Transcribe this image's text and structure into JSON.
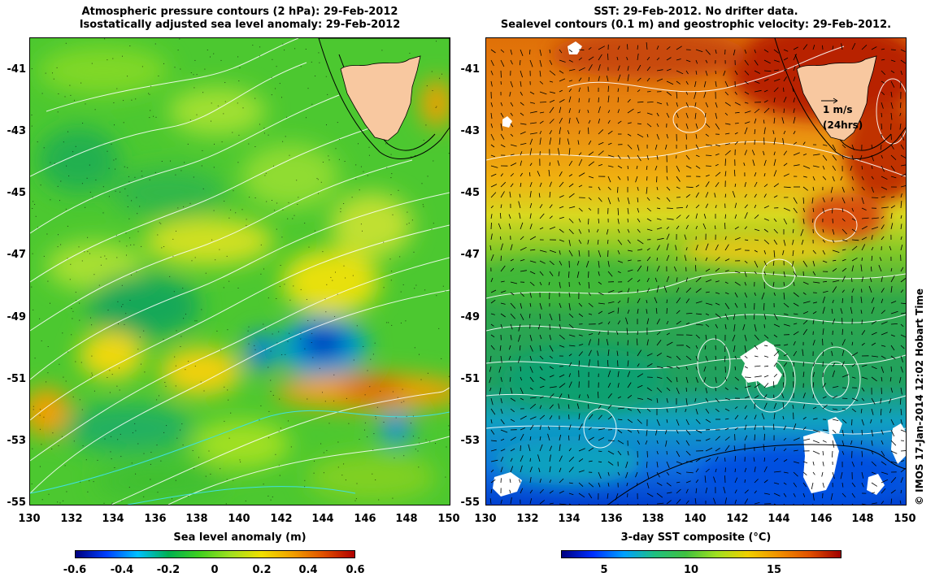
{
  "left_panel": {
    "title_line1": "Atmospheric pressure contours (2 hPa): 29-Feb-2012",
    "title_line2": "Isostatically adjusted sea level anomaly: 29-Feb-2012",
    "colorbar_label": "Sea level anomaly (m)",
    "colorbar_ticks": [
      "-0.6",
      "-0.4",
      "-0.2",
      "0",
      "0.2",
      "0.4",
      "0.6"
    ]
  },
  "right_panel": {
    "title_line1": "SST: 29-Feb-2012. No drifter data.",
    "title_line2": "Sealevel contours (0.1 m) and geostrophic velocity: 29-Feb-2012.",
    "colorbar_label": "3-day SST composite (°C)",
    "colorbar_ticks": [
      "5",
      "10",
      "15"
    ],
    "scale_arrow_label": "1 m/s",
    "scale_arrow_sublabel": "(24hrs)"
  },
  "axes": {
    "lat_ticks": [
      "-41",
      "-43",
      "-45",
      "-47",
      "-49",
      "-51",
      "-53",
      "-55"
    ],
    "lon_ticks": [
      "130",
      "132",
      "134",
      "136",
      "138",
      "140",
      "142",
      "144",
      "146",
      "148",
      "150"
    ]
  },
  "credit": "© IMOS 17-Jan-2014 12:02 Hobart Time",
  "colors": {
    "land": "#f8c8a0",
    "sla_scale": [
      "#00007f",
      "#0040ff",
      "#00c0ff",
      "#00b050",
      "#40d020",
      "#a0e020",
      "#f0e000",
      "#f0a000",
      "#e05000",
      "#b00000"
    ],
    "sst_scale": [
      "#000080",
      "#0030ff",
      "#00a0ff",
      "#20c080",
      "#40c040",
      "#a0e020",
      "#f0d000",
      "#f09000",
      "#e05000",
      "#a00000"
    ]
  }
}
